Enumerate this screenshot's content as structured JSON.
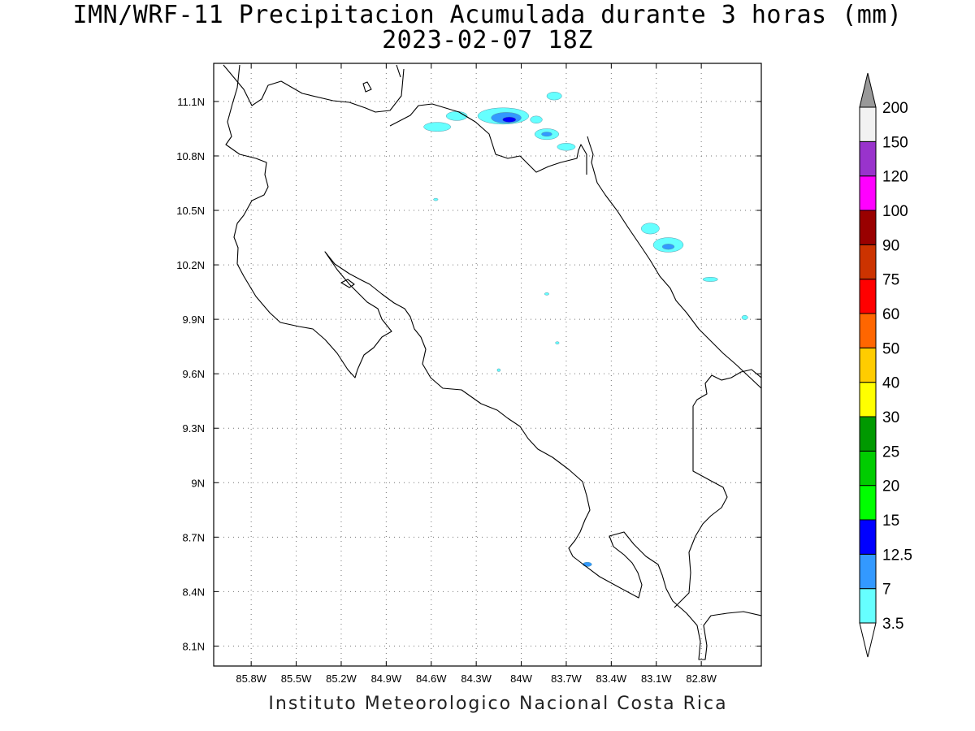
{
  "title": {
    "line1": "IMN/WRF-11 Precipitacion Acumulada durante 3 horas (mm)",
    "line2": "2023-02-07 18Z"
  },
  "credit": "Instituto Meteorologico Nacional Costa Rica",
  "map": {
    "lon_range": [
      -86.05,
      -82.4
    ],
    "lat_range": [
      7.99,
      11.31
    ],
    "x_ticks": [
      "85.8W",
      "85.5W",
      "85.2W",
      "84.9W",
      "84.6W",
      "84.3W",
      "84W",
      "83.7W",
      "83.4W",
      "83.1W",
      "82.8W"
    ],
    "x_tick_values": [
      -85.8,
      -85.5,
      -85.2,
      -84.9,
      -84.6,
      -84.3,
      -84.0,
      -83.7,
      -83.4,
      -83.1,
      -82.8
    ],
    "y_ticks": [
      "8.1N",
      "8.4N",
      "8.7N",
      "9N",
      "9.3N",
      "9.6N",
      "9.9N",
      "10.2N",
      "10.5N",
      "10.8N",
      "11.1N"
    ],
    "y_tick_values": [
      8.1,
      8.4,
      8.7,
      9.0,
      9.3,
      9.6,
      9.9,
      10.2,
      10.5,
      10.8,
      11.1
    ],
    "grid": "dotted",
    "precip_areas": [
      {
        "lon": -84.12,
        "lat": 11.02,
        "rlon": 0.17,
        "rlat": 0.045,
        "color": "#66ffff"
      },
      {
        "lon": -84.1,
        "lat": 11.01,
        "rlon": 0.1,
        "rlat": 0.03,
        "color": "#3399ff"
      },
      {
        "lon": -84.08,
        "lat": 11.0,
        "rlon": 0.045,
        "rlat": 0.015,
        "color": "#0000ff"
      },
      {
        "lon": -84.43,
        "lat": 11.02,
        "rlon": 0.07,
        "rlat": 0.025,
        "color": "#66ffff"
      },
      {
        "lon": -84.56,
        "lat": 10.96,
        "rlon": 0.09,
        "rlat": 0.025,
        "color": "#66ffff"
      },
      {
        "lon": -83.9,
        "lat": 11.0,
        "rlon": 0.04,
        "rlat": 0.02,
        "color": "#66ffff"
      },
      {
        "lon": -83.83,
        "lat": 10.92,
        "rlon": 0.08,
        "rlat": 0.03,
        "color": "#66ffff"
      },
      {
        "lon": -83.83,
        "lat": 10.92,
        "rlon": 0.035,
        "rlat": 0.012,
        "color": "#3399ff"
      },
      {
        "lon": -83.7,
        "lat": 10.85,
        "rlon": 0.06,
        "rlat": 0.02,
        "color": "#66ffff"
      },
      {
        "lon": -83.78,
        "lat": 11.13,
        "rlon": 0.05,
        "rlat": 0.022,
        "color": "#66ffff"
      },
      {
        "lon": -83.14,
        "lat": 10.4,
        "rlon": 0.06,
        "rlat": 0.03,
        "color": "#66ffff"
      },
      {
        "lon": -83.02,
        "lat": 10.31,
        "rlon": 0.1,
        "rlat": 0.04,
        "color": "#66ffff"
      },
      {
        "lon": -83.02,
        "lat": 10.3,
        "rlon": 0.04,
        "rlat": 0.015,
        "color": "#3399ff"
      },
      {
        "lon": -82.74,
        "lat": 10.12,
        "rlon": 0.05,
        "rlat": 0.012,
        "color": "#66ffff"
      },
      {
        "lon": -83.56,
        "lat": 8.55,
        "rlon": 0.03,
        "rlat": 0.012,
        "color": "#3399ff"
      },
      {
        "lon": -84.57,
        "lat": 10.56,
        "rlon": 0.015,
        "rlat": 0.005,
        "color": "#66ffff"
      },
      {
        "lon": -83.83,
        "lat": 10.04,
        "rlon": 0.015,
        "rlat": 0.005,
        "color": "#66ffff"
      },
      {
        "lon": -83.76,
        "lat": 9.77,
        "rlon": 0.012,
        "rlat": 0.006,
        "color": "#66ffff"
      },
      {
        "lon": -84.15,
        "lat": 9.62,
        "rlon": 0.01,
        "rlat": 0.008,
        "color": "#66ffff"
      },
      {
        "lon": -82.51,
        "lat": 9.91,
        "rlon": 0.02,
        "rlat": 0.012,
        "color": "#66ffff"
      }
    ]
  },
  "colorbar": {
    "labels": [
      "3.5",
      "7",
      "12.5",
      "15",
      "20",
      "25",
      "30",
      "40",
      "50",
      "60",
      "75",
      "90",
      "100",
      "120",
      "150",
      "200"
    ],
    "segments": [
      "#66ffff",
      "#3399ff",
      "#0000ff",
      "#00ff00",
      "#00cc00",
      "#009900",
      "#ffff00",
      "#ffcc00",
      "#ff6600",
      "#ff0000",
      "#cc3300",
      "#990000",
      "#ff00ff",
      "#9933cc",
      "#f2f2f2"
    ],
    "under_color": "#ffffff",
    "over_color": "#999999"
  }
}
